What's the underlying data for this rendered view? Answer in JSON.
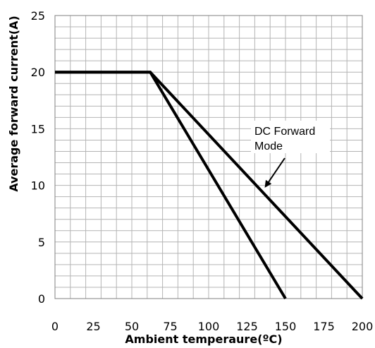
{
  "chart_data": {
    "type": "line",
    "title": "",
    "xlabel": "Ambient temperaure(ºC)",
    "ylabel": "Average forward current(A)",
    "xlim": [
      0,
      200
    ],
    "ylim": [
      0,
      25
    ],
    "x_ticks": [
      0,
      25,
      50,
      75,
      100,
      125,
      150,
      175,
      200
    ],
    "y_ticks": [
      0,
      5,
      10,
      15,
      20,
      25
    ],
    "grid": true,
    "x_minor_step": 10,
    "y_minor_step": 1,
    "series": [
      {
        "x": [
          0,
          62,
          150
        ],
        "y": [
          20,
          20,
          0
        ]
      },
      {
        "name": "DC Forward Mode",
        "x": [
          0,
          62,
          200
        ],
        "y": [
          20,
          20,
          0
        ]
      }
    ],
    "annotations": [
      {
        "lines": [
          "DC Forward",
          "Mode"
        ],
        "arrow_to": [
          137,
          9.9
        ]
      }
    ],
    "line_color": "#000000",
    "grid_color": "#b4b4b4"
  }
}
